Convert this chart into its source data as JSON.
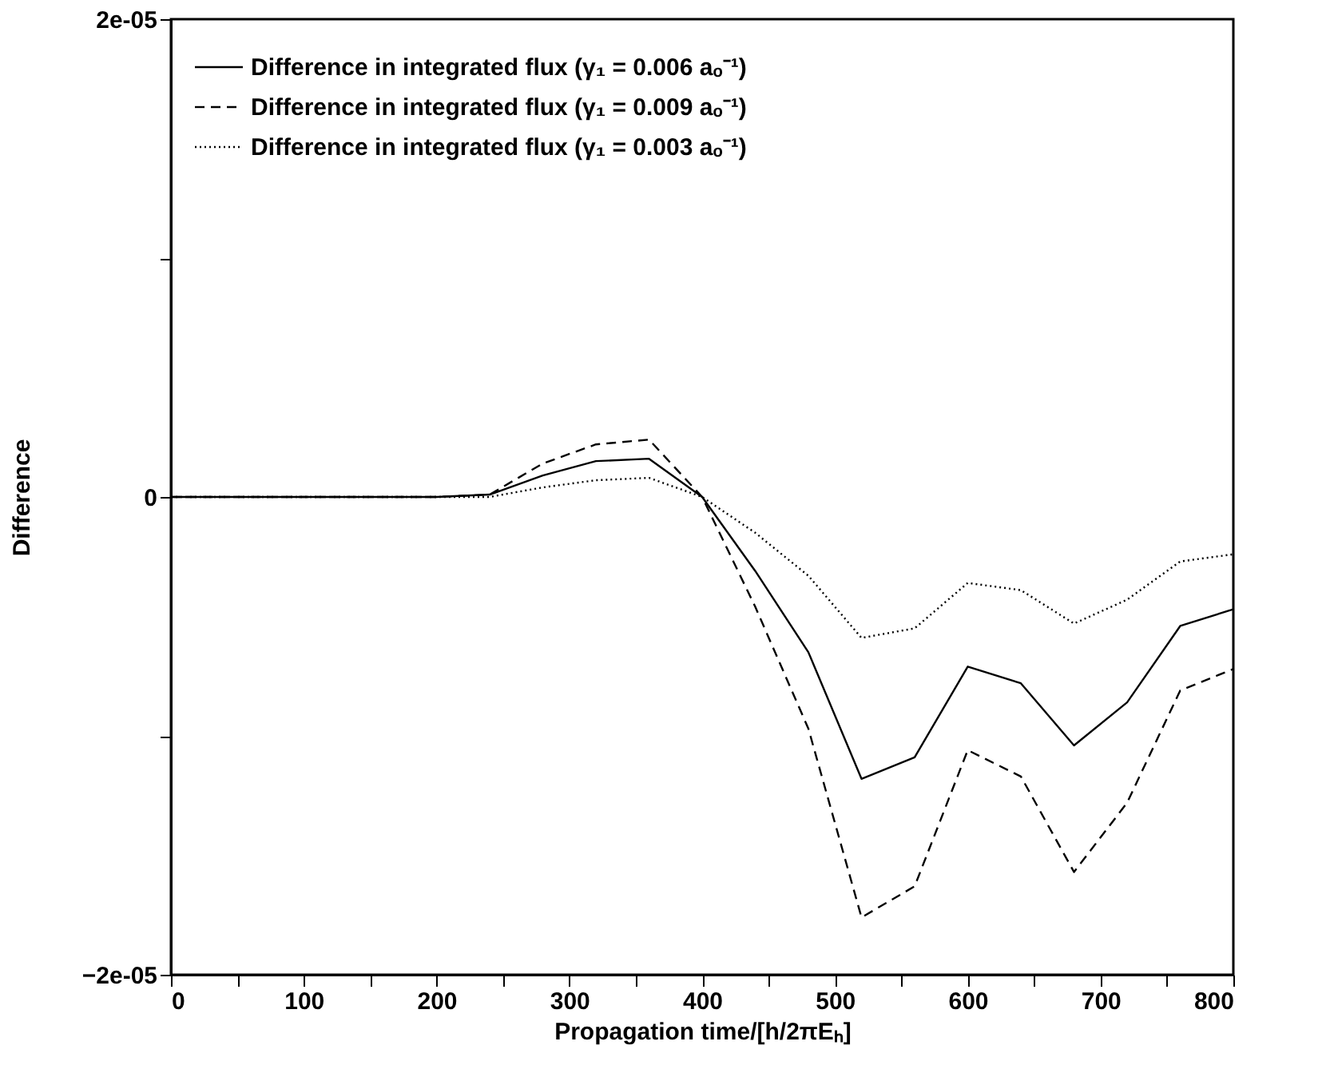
{
  "chart_data": {
    "type": "line",
    "xlabel": "Propagation time/[h/2πEₕ]",
    "ylabel": "Difference",
    "x": [
      0,
      40,
      80,
      120,
      160,
      200,
      240,
      280,
      320,
      360,
      400,
      440,
      480,
      520,
      560,
      600,
      640,
      680,
      720,
      760,
      800
    ],
    "series": [
      {
        "name": "Difference in integrated flux (γ₁ = 0.006 aₒ⁻¹)",
        "color": "#000000",
        "line_style": "solid",
        "values": [
          0,
          0,
          0,
          0,
          0,
          0,
          1e-07,
          9e-07,
          1.5e-06,
          1.6e-06,
          0,
          -3.1e-06,
          -6.5e-06,
          -1.18e-05,
          -1.09e-05,
          -7.1e-06,
          -7.8e-06,
          -1.04e-05,
          -8.6e-06,
          -5.4e-06,
          -4.7e-06
        ]
      },
      {
        "name": "Difference in integrated flux (γ₁ = 0.009 aₒ⁻¹)",
        "color": "#000000",
        "line_style": "dashed",
        "values": [
          0,
          0,
          0,
          0,
          0,
          0,
          1e-07,
          1.4e-06,
          2.2e-06,
          2.4e-06,
          0,
          -4.6e-06,
          -9.7e-06,
          -1.76e-05,
          -1.63e-05,
          -1.06e-05,
          -1.17e-05,
          -1.57e-05,
          -1.28e-05,
          -8.1e-06,
          -7.2e-06
        ]
      },
      {
        "name": "Difference in integrated flux (γ₁ = 0.003 aₒ⁻¹)",
        "color": "#000000",
        "line_style": "dotted",
        "values": [
          0,
          0,
          0,
          0,
          0,
          0,
          0,
          4e-07,
          7e-07,
          8e-07,
          0,
          -1.5e-06,
          -3.3e-06,
          -5.9e-06,
          -5.5e-06,
          -3.6e-06,
          -3.9e-06,
          -5.3e-06,
          -4.3e-06,
          -2.7e-06,
          -2.4e-06
        ]
      }
    ],
    "xlim": [
      0,
      800
    ],
    "ylim": [
      -2e-05,
      2e-05
    ],
    "xticks": [
      0,
      {
        "value": 50,
        "label": null
      },
      100,
      {
        "value": 150,
        "label": null
      },
      200,
      {
        "value": 250,
        "label": null
      },
      300,
      {
        "value": 350,
        "label": null
      },
      400,
      {
        "value": 450,
        "label": null
      },
      500,
      {
        "value": 550,
        "label": null
      },
      600,
      {
        "value": 650,
        "label": null
      },
      700,
      {
        "value": 750,
        "label": null
      },
      800
    ],
    "yticks": [
      {
        "value": 2e-05,
        "label": "2e-05"
      },
      {
        "value": 1e-05,
        "label": null
      },
      0,
      {
        "value": -1e-05,
        "label": null
      },
      {
        "value": -2e-05,
        "label": "−2e-05"
      }
    ],
    "legend": "top left",
    "grid": false,
    "marker": "none"
  }
}
